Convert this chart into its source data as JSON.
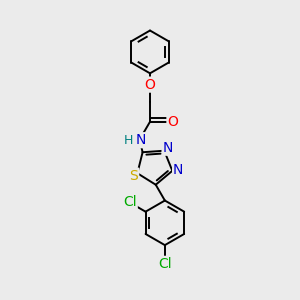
{
  "bg_color": "#ebebeb",
  "bond_color": "#000000",
  "atom_colors": {
    "O": "#ff0000",
    "N": "#0000cc",
    "S": "#ccaa00",
    "Cl": "#00aa00",
    "H": "#008080",
    "C": "#000000"
  },
  "font_size": 10,
  "bond_width": 1.4,
  "figsize": [
    3.0,
    3.0
  ],
  "dpi": 100
}
